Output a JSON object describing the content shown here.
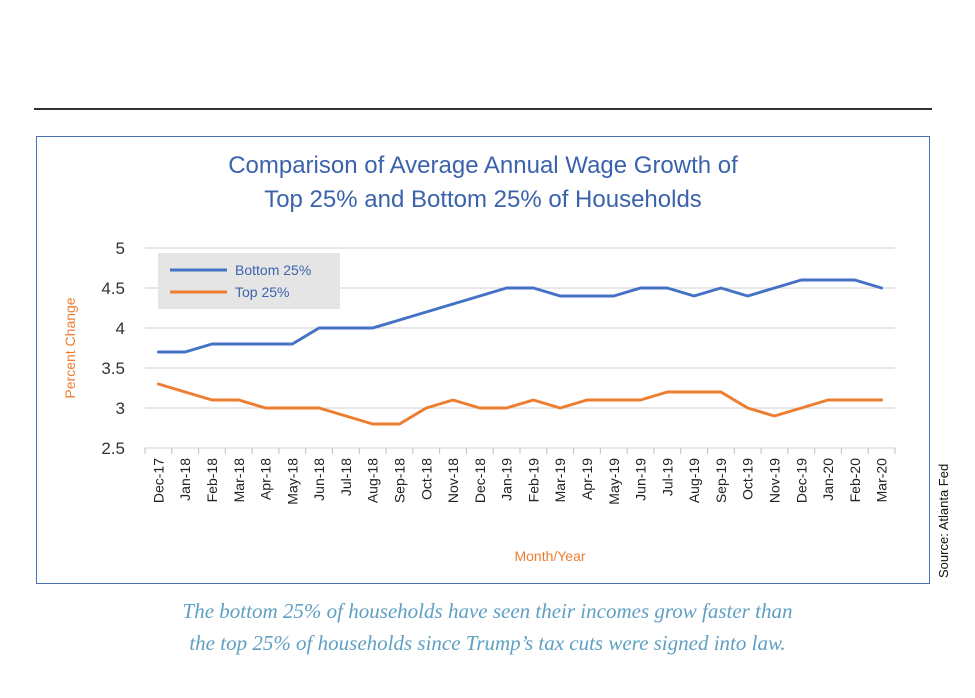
{
  "chart_data": {
    "type": "line",
    "title_lines": [
      "Comparison of Average Annual Wage Growth of",
      "Top 25% and Bottom 25% of Households"
    ],
    "xlabel": "Month/Year",
    "ylabel": "Percent Change",
    "ylim": [
      2.5,
      5
    ],
    "yticks": [
      "2.5",
      "3",
      "3.5",
      "4",
      "4.5",
      "5"
    ],
    "grid": "horizontal",
    "legend_position": "top-left",
    "categories": [
      "Dec-17",
      "Jan-18",
      "Feb-18",
      "Mar-18",
      "Apr-18",
      "May-18",
      "Jun-18",
      "Jul-18",
      "Aug-18",
      "Sep-18",
      "Oct-18",
      "Nov-18",
      "Dec-18",
      "Jan-19",
      "Feb-19",
      "Mar-19",
      "Apr-19",
      "May-19",
      "Jun-19",
      "Jul-19",
      "Aug-19",
      "Sep-19",
      "Oct-19",
      "Nov-19",
      "Dec-19",
      "Jan-20",
      "Feb-20",
      "Mar-20"
    ],
    "series": [
      {
        "name": "Bottom 25%",
        "color": "#4472c4",
        "values": [
          3.7,
          3.7,
          3.8,
          3.8,
          3.8,
          3.8,
          4.0,
          4.0,
          4.0,
          4.1,
          4.2,
          4.3,
          4.4,
          4.5,
          4.5,
          4.4,
          4.4,
          4.4,
          4.5,
          4.5,
          4.4,
          4.5,
          4.4,
          4.5,
          4.6,
          4.6,
          4.6,
          4.5
        ]
      },
      {
        "name": "Top 25%",
        "color": "#ed7d31",
        "values": [
          3.3,
          3.2,
          3.1,
          3.1,
          3.0,
          3.0,
          3.0,
          2.9,
          2.8,
          2.8,
          3.0,
          3.1,
          3.0,
          3.0,
          3.1,
          3.0,
          3.1,
          3.1,
          3.1,
          3.2,
          3.2,
          3.2,
          3.0,
          2.9,
          3.0,
          3.1,
          3.1,
          3.1
        ]
      }
    ]
  },
  "source_note": "Source: Atlanta Fed",
  "caption_lines": [
    "The bottom 25% of households have seen their incomes grow faster than",
    "the top 25% of households since Trump’s tax cuts were signed into law."
  ]
}
